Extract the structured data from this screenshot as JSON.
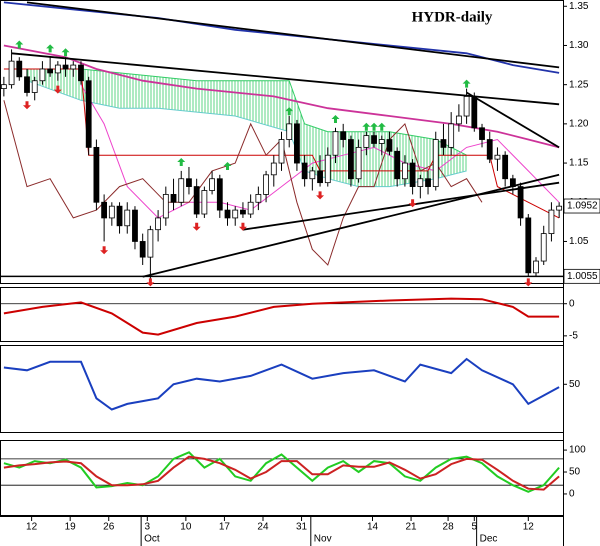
{
  "chart_data": [
    {
      "type": "candlestick",
      "title": "HYDR-daily",
      "open": [
        1.245,
        1.25,
        1.28,
        1.26,
        1.24,
        1.255,
        1.27,
        1.265,
        1.275,
        1.27,
        1.275,
        1.255,
        1.17,
        1.1,
        1.08,
        1.095,
        1.07,
        1.09,
        1.05,
        1.03,
        1.065,
        1.08,
        1.11,
        1.1,
        1.13,
        1.12,
        1.085,
        1.115,
        1.13,
        1.09,
        1.08,
        1.09,
        1.085,
        1.1,
        1.11,
        1.135,
        1.15,
        1.18,
        1.2,
        1.15,
        1.13,
        1.14,
        1.125,
        1.16,
        1.19,
        1.18,
        1.13,
        1.17,
        1.185,
        1.175,
        1.18,
        1.165,
        1.13,
        1.15,
        1.12,
        1.13,
        1.12,
        1.18,
        1.17,
        1.2,
        1.21,
        1.235,
        1.195,
        1.18,
        1.155,
        1.16,
        1.13,
        1.12,
        1.08,
        1.01,
        1.025,
        1.06,
        1.09
      ],
      "high": [
        1.26,
        1.295,
        1.285,
        1.27,
        1.26,
        1.28,
        1.285,
        1.28,
        1.285,
        1.28,
        1.28,
        1.26,
        1.18,
        1.11,
        1.1,
        1.1,
        1.1,
        1.095,
        1.06,
        1.07,
        1.09,
        1.12,
        1.13,
        1.14,
        1.145,
        1.13,
        1.12,
        1.14,
        1.135,
        1.1,
        1.095,
        1.1,
        1.11,
        1.12,
        1.14,
        1.16,
        1.19,
        1.21,
        1.205,
        1.16,
        1.145,
        1.16,
        1.17,
        1.195,
        1.2,
        1.185,
        1.18,
        1.19,
        1.19,
        1.185,
        1.19,
        1.17,
        1.16,
        1.155,
        1.135,
        1.14,
        1.19,
        1.2,
        1.215,
        1.225,
        1.245,
        1.24,
        1.2,
        1.19,
        1.17,
        1.165,
        1.135,
        1.125,
        1.085,
        1.03,
        1.07,
        1.1,
        1.1
      ],
      "low": [
        1.235,
        1.245,
        1.255,
        1.235,
        1.23,
        1.25,
        1.26,
        1.255,
        1.26,
        1.26,
        1.25,
        1.16,
        1.09,
        1.05,
        1.07,
        1.06,
        1.06,
        1.04,
        1.02,
        1.0,
        1.05,
        1.07,
        1.09,
        1.095,
        1.11,
        1.08,
        1.08,
        1.11,
        1.08,
        1.07,
        1.07,
        1.08,
        1.08,
        1.09,
        1.1,
        1.12,
        1.14,
        1.17,
        1.14,
        1.12,
        1.115,
        1.12,
        1.12,
        1.15,
        1.17,
        1.12,
        1.125,
        1.16,
        1.17,
        1.16,
        1.16,
        1.12,
        1.12,
        1.11,
        1.105,
        1.11,
        1.115,
        1.16,
        1.16,
        1.19,
        1.2,
        1.19,
        1.17,
        1.15,
        1.14,
        1.12,
        1.11,
        1.07,
        1.005,
        1.005,
        1.02,
        1.05,
        1.08
      ],
      "close": [
        1.25,
        1.28,
        1.26,
        1.24,
        1.255,
        1.27,
        1.265,
        1.275,
        1.27,
        1.275,
        1.255,
        1.17,
        1.1,
        1.08,
        1.095,
        1.07,
        1.09,
        1.05,
        1.03,
        1.065,
        1.08,
        1.11,
        1.1,
        1.13,
        1.12,
        1.085,
        1.115,
        1.13,
        1.09,
        1.08,
        1.09,
        1.085,
        1.1,
        1.11,
        1.135,
        1.15,
        1.18,
        1.2,
        1.15,
        1.13,
        1.14,
        1.125,
        1.16,
        1.19,
        1.18,
        1.13,
        1.17,
        1.185,
        1.175,
        1.18,
        1.165,
        1.13,
        1.15,
        1.12,
        1.13,
        1.12,
        1.18,
        1.17,
        1.2,
        1.21,
        1.235,
        1.195,
        1.18,
        1.155,
        1.16,
        1.13,
        1.12,
        1.08,
        1.01,
        1.025,
        1.06,
        1.09,
        1.095
      ],
      "up_color": "#ffffff",
      "down_color": "#000000",
      "xlim": [
        -0.5,
        72.5
      ],
      "ylim": [
        0.997,
        1.358
      ],
      "yticks": [
        {
          "value": 1.35,
          "label": "1.35"
        },
        {
          "value": 1.3,
          "label": "1.30"
        },
        1.25,
        {
          "value": 1.2,
          "label": "1.20"
        },
        1.15,
        {
          "value": 1.1,
          "label": "1.10"
        },
        1.05
      ],
      "cloud": {
        "color": "#33cc66",
        "edge_color": "#66cccc",
        "x": [
          3,
          10,
          15,
          20,
          25,
          30,
          37,
          39,
          42,
          46,
          50,
          56,
          60
        ],
        "upper": [
          1.27,
          1.27,
          1.265,
          1.26,
          1.255,
          1.255,
          1.255,
          1.2,
          1.19,
          1.19,
          1.19,
          1.18,
          1.16
        ],
        "lower": [
          1.255,
          1.23,
          1.22,
          1.22,
          1.215,
          1.21,
          1.19,
          1.14,
          1.13,
          1.12,
          1.12,
          1.13,
          1.14
        ]
      },
      "lines": [
        {
          "color": "#2233aa",
          "x": [
            0,
            10,
            20,
            30,
            40,
            50,
            60,
            66,
            72
          ],
          "values": [
            1.355,
            1.345,
            1.335,
            1.32,
            1.31,
            1.3,
            1.29,
            1.275,
            1.265
          ]
        },
        {
          "color": "#cc3399",
          "x": [
            0,
            8,
            12,
            18,
            25,
            35,
            42,
            50,
            58,
            64,
            68,
            72
          ],
          "values": [
            1.3,
            1.285,
            1.27,
            1.255,
            1.245,
            1.235,
            1.22,
            1.21,
            1.2,
            1.19,
            1.18,
            1.17
          ]
        },
        {
          "color": "#ee44cc",
          "x": [
            10,
            13,
            16,
            20,
            24,
            28,
            32,
            36,
            40,
            44,
            48,
            52,
            56,
            60,
            64,
            68,
            72
          ],
          "values": [
            1.25,
            1.2,
            1.12,
            1.08,
            1.1,
            1.1,
            1.09,
            1.12,
            1.15,
            1.16,
            1.17,
            1.15,
            1.14,
            1.17,
            1.18,
            1.14,
            1.1
          ]
        },
        {
          "color": "#cc0000",
          "x": [
            0,
            10,
            11,
            40,
            41,
            55,
            56,
            63,
            64,
            72
          ],
          "values": [
            1.27,
            1.27,
            1.16,
            1.16,
            1.14,
            1.14,
            1.16,
            1.16,
            1.12,
            1.08
          ]
        },
        {
          "color": "#8b2b2b",
          "x": [
            0,
            3,
            6,
            9,
            12,
            15,
            18,
            21,
            24,
            27,
            30,
            32,
            34,
            36,
            38,
            40,
            42,
            44,
            46,
            48,
            50,
            52,
            54,
            56,
            58,
            60,
            62
          ],
          "values": [
            1.23,
            1.12,
            1.13,
            1.08,
            1.09,
            1.12,
            1.13,
            1.1,
            1.1,
            1.14,
            1.15,
            1.2,
            1.16,
            1.18,
            1.1,
            1.04,
            1.02,
            1.08,
            1.12,
            1.12,
            1.18,
            1.2,
            1.14,
            1.15,
            1.12,
            1.13,
            1.1
          ]
        }
      ],
      "trend_lines": [
        {
          "color": "#000000",
          "x": [
            3,
            72
          ],
          "values": [
            1.355,
            1.272
          ]
        },
        {
          "color": "#000000",
          "x": [
            1,
            72
          ],
          "values": [
            1.29,
            1.225
          ]
        },
        {
          "color": "#000000",
          "x": [
            60,
            72
          ],
          "values": [
            1.24,
            1.17
          ]
        },
        {
          "color": "#000000",
          "x": [
            18,
            72
          ],
          "values": [
            1.005,
            1.135
          ]
        },
        {
          "color": "#000000",
          "x": [
            31,
            72
          ],
          "values": [
            1.065,
            1.125
          ]
        }
      ],
      "up_fractals": {
        "color": "#22bb44",
        "x": [
          2,
          6,
          8,
          23,
          29,
          37,
          43,
          47,
          48,
          49,
          60
        ],
        "values": [
          1.3,
          1.295,
          1.29,
          1.15,
          1.145,
          1.215,
          1.205,
          1.195,
          1.195,
          1.195,
          1.25
        ]
      },
      "down_fractals": {
        "color": "#dd2222",
        "x": [
          3,
          7,
          13,
          19,
          25,
          31,
          41,
          53,
          68
        ],
        "values": [
          1.225,
          1.245,
          1.04,
          0.999,
          1.07,
          1.07,
          1.11,
          1.1,
          0.999
        ]
      },
      "price_labels": [
        1.0952,
        1.0055
      ]
    },
    {
      "type": "line",
      "xlim": [
        -0.5,
        72.5
      ],
      "ylim": [
        -5.8,
        2.6
      ],
      "yticks": [
        0,
        -5
      ],
      "ref_lines": [
        0
      ],
      "series": [
        {
          "color": "#cc0000",
          "x": [
            0,
            5,
            10,
            14,
            18,
            20,
            25,
            30,
            35,
            40,
            50,
            58,
            62,
            66,
            68,
            72
          ],
          "values": [
            -1.5,
            -0.5,
            0.2,
            -1.5,
            -4.5,
            -4.8,
            -3,
            -2,
            -0.5,
            0,
            0.5,
            0.8,
            0.7,
            -0.5,
            -2,
            -2
          ]
        }
      ]
    },
    {
      "type": "line",
      "xlim": [
        -0.5,
        72.5
      ],
      "ylim": [
        16,
        78
      ],
      "yticks": [
        50
      ],
      "ref_lines": [],
      "series": [
        {
          "color": "#1a3fbf",
          "x": [
            0,
            3,
            6,
            10,
            12,
            14,
            16,
            18,
            20,
            22,
            25,
            28,
            32,
            36,
            40,
            44,
            48,
            52,
            54,
            58,
            60,
            62,
            66,
            68,
            70,
            72
          ],
          "values": [
            62,
            60,
            66,
            66,
            40,
            32,
            36,
            38,
            40,
            50,
            54,
            52,
            56,
            64,
            54,
            58,
            60,
            52,
            64,
            58,
            68,
            60,
            50,
            36,
            42,
            48
          ]
        }
      ]
    },
    {
      "type": "line",
      "xlim": [
        -0.5,
        72.5
      ],
      "ylim": [
        -48,
        123
      ],
      "yticks": [
        100,
        50,
        0
      ],
      "ref_lines": [
        80,
        20
      ],
      "series": [
        {
          "color": "#22cc22",
          "x": [
            0,
            2,
            4,
            6,
            8,
            10,
            12,
            14,
            16,
            18,
            20,
            22,
            24,
            26,
            28,
            30,
            32,
            34,
            36,
            38,
            40,
            42,
            44,
            46,
            48,
            50,
            52,
            54,
            56,
            58,
            60,
            62,
            64,
            66,
            68,
            70,
            72
          ],
          "values": [
            70,
            60,
            75,
            70,
            78,
            60,
            15,
            18,
            25,
            20,
            40,
            80,
            95,
            60,
            80,
            40,
            30,
            70,
            90,
            60,
            30,
            60,
            75,
            50,
            75,
            70,
            40,
            30,
            60,
            80,
            85,
            70,
            40,
            20,
            5,
            20,
            60
          ]
        },
        {
          "color": "#cc2222",
          "x": [
            0,
            2,
            4,
            6,
            8,
            10,
            12,
            14,
            16,
            18,
            20,
            22,
            24,
            26,
            28,
            30,
            32,
            34,
            36,
            38,
            40,
            42,
            44,
            46,
            48,
            50,
            52,
            54,
            56,
            58,
            60,
            62,
            64,
            66,
            68,
            70,
            72
          ],
          "values": [
            60,
            65,
            68,
            72,
            74,
            70,
            40,
            20,
            20,
            22,
            30,
            60,
            85,
            80,
            70,
            55,
            35,
            50,
            75,
            75,
            45,
            45,
            65,
            62,
            62,
            72,
            55,
            35,
            45,
            68,
            80,
            78,
            55,
            30,
            12,
            10,
            40
          ]
        }
      ],
      "xticks": [
        {
          "value": 3.6,
          "label": "12"
        },
        {
          "value": 8.6,
          "label": "19"
        },
        {
          "value": 13.6,
          "label": "26"
        },
        {
          "value": 18.6,
          "label": "3"
        },
        {
          "value": 23.6,
          "label": "10"
        },
        {
          "value": 28.6,
          "label": "17"
        },
        {
          "value": 33.6,
          "label": "24"
        },
        {
          "value": 38.6,
          "label": "31"
        },
        {
          "value": 47.8,
          "label": "14"
        },
        {
          "value": 52.8,
          "label": "21"
        },
        {
          "value": 57.6,
          "label": "28"
        },
        {
          "value": 61,
          "label": "5"
        },
        {
          "value": 68,
          "label": "12"
        }
      ],
      "month_ticks": [
        {
          "value": 17.8,
          "label": "Oct"
        },
        {
          "value": 39.8,
          "label": "Nov"
        },
        {
          "value": 61.3,
          "label": "Dec"
        }
      ]
    }
  ]
}
